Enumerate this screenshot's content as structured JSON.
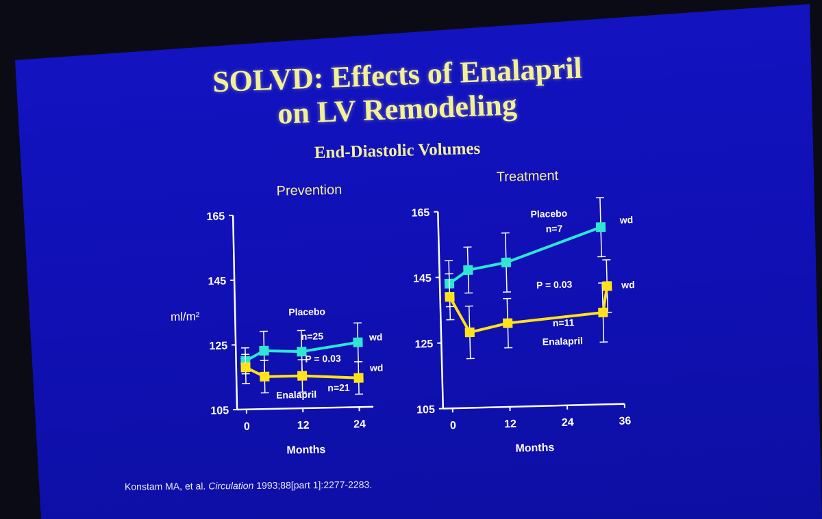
{
  "slide": {
    "title_line1": "SOLVD: Effects of Enalapril",
    "title_line2": "on LV Remodeling",
    "subtitle": "End-Diastolic Volumes",
    "citation_authors": "Konstam MA, et al.",
    "citation_journal": "Circulation",
    "citation_ref": "1993;88[part 1]:2277-2283."
  },
  "colors": {
    "placebo": "#2ee6d2",
    "enalapril": "#ffe21a",
    "axis": "#ffffff",
    "title": "#f2f09a"
  },
  "chart_data": [
    {
      "type": "line",
      "title": "Prevention",
      "xlabel": "Months",
      "ylabel": "ml/m²",
      "ylim": [
        105,
        165
      ],
      "yticks": [
        "105",
        "125",
        "145",
        "165"
      ],
      "xlim": [
        -2,
        27
      ],
      "xticks": [
        "0",
        "12",
        "24"
      ],
      "xtick_values": [
        0,
        12,
        24
      ],
      "series": [
        {
          "name": "Placebo",
          "x": [
            0,
            4,
            12,
            24
          ],
          "values": [
            120,
            123,
            122.5,
            125
          ],
          "err_low": [
            116,
            116,
            116,
            119
          ],
          "err_high": [
            124,
            129,
            129,
            131
          ]
        },
        {
          "name": "Enalapril",
          "x": [
            0,
            4,
            12,
            24
          ],
          "values": [
            118,
            115,
            115,
            114
          ],
          "err_low": [
            113,
            110,
            110,
            109
          ],
          "err_high": [
            122,
            120,
            120,
            119
          ]
        }
      ],
      "annotations": {
        "placebo_label": "Placebo",
        "placebo_n": "n=25",
        "enalapril_label": "Enalapril",
        "enalapril_n": "n=21",
        "p_value": "P = 0.03",
        "wd": "wd"
      }
    },
    {
      "type": "line",
      "title": "Treatment",
      "xlabel": "Months",
      "ylabel": "",
      "ylim": [
        105,
        165
      ],
      "yticks": [
        "105",
        "125",
        "145",
        "165"
      ],
      "xlim": [
        -2,
        36
      ],
      "xticks": [
        "0",
        "12",
        "24",
        "36"
      ],
      "xtick_values": [
        0,
        12,
        24,
        36
      ],
      "series": [
        {
          "name": "Placebo",
          "x": [
            0,
            4,
            12,
            32
          ],
          "values": [
            143,
            147,
            149,
            159
          ],
          "err_low": [
            136,
            140,
            140,
            150
          ],
          "err_high": [
            150,
            154,
            158,
            168
          ]
        },
        {
          "name": "Enalapril",
          "x": [
            0,
            4,
            12,
            32,
            33
          ],
          "values": [
            139,
            128,
            130.5,
            133,
            141
          ],
          "err_low": [
            132,
            120,
            123,
            124,
            133
          ],
          "err_high": [
            146,
            136,
            138,
            142,
            149
          ]
        }
      ],
      "annotations": {
        "placebo_label": "Placebo",
        "placebo_n": "n=7",
        "enalapril_label": "Enalapril",
        "enalapril_n": "n=11",
        "p_value": "P = 0.03",
        "wd": "wd"
      }
    }
  ]
}
